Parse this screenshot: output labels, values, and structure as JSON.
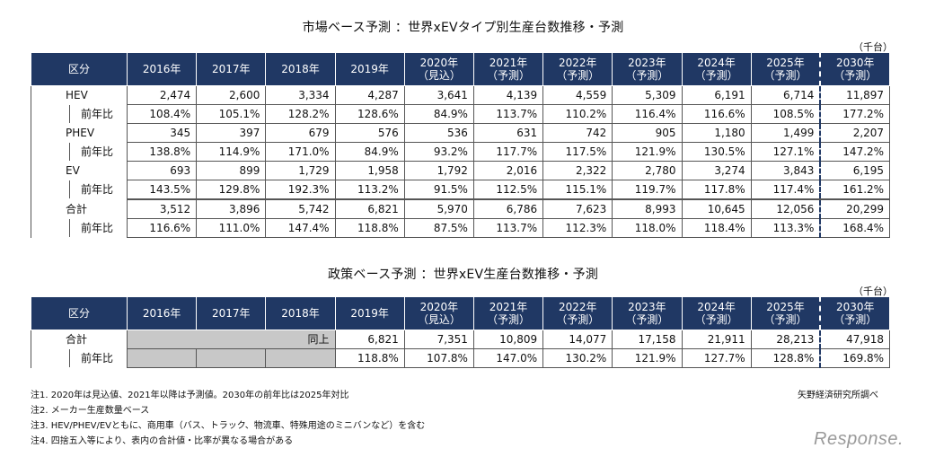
{
  "table1": {
    "title": "市場ベース予測 ：世界xEVタイプ別生産台数推移・予測",
    "unit": "（千台）",
    "header": [
      {
        "l1": "区分",
        "l2": ""
      },
      {
        "l1": "2016年",
        "l2": ""
      },
      {
        "l1": "2017年",
        "l2": ""
      },
      {
        "l1": "2018年",
        "l2": ""
      },
      {
        "l1": "2019年",
        "l2": ""
      },
      {
        "l1": "2020年",
        "l2": "（見込）"
      },
      {
        "l1": "2021年",
        "l2": "（予測）"
      },
      {
        "l1": "2022年",
        "l2": "（予測）"
      },
      {
        "l1": "2023年",
        "l2": "（予測）"
      },
      {
        "l1": "2024年",
        "l2": "（予測）"
      },
      {
        "l1": "2025年",
        "l2": "（予測）"
      },
      {
        "l1": "2030年",
        "l2": "（予測）"
      }
    ],
    "rows": [
      {
        "label": "HEV",
        "values": [
          "2,474",
          "2,600",
          "3,334",
          "4,287",
          "3,641",
          "4,139",
          "4,559",
          "5,309",
          "6,191",
          "6,714",
          "11,897"
        ],
        "sub_label": "前年比",
        "sub_values": [
          "108.4%",
          "105.1%",
          "128.2%",
          "128.6%",
          "84.9%",
          "113.7%",
          "110.2%",
          "116.4%",
          "116.6%",
          "108.5%",
          "177.2%"
        ]
      },
      {
        "label": "PHEV",
        "values": [
          "345",
          "397",
          "679",
          "576",
          "536",
          "631",
          "742",
          "905",
          "1,180",
          "1,499",
          "2,207"
        ],
        "sub_label": "前年比",
        "sub_values": [
          "138.8%",
          "114.9%",
          "171.0%",
          "84.9%",
          "93.2%",
          "117.7%",
          "117.5%",
          "121.9%",
          "130.5%",
          "127.1%",
          "147.2%"
        ]
      },
      {
        "label": "EV",
        "values": [
          "693",
          "899",
          "1,729",
          "1,958",
          "1,792",
          "2,016",
          "2,322",
          "2,780",
          "3,274",
          "3,843",
          "6,195"
        ],
        "sub_label": "前年比",
        "sub_values": [
          "143.5%",
          "129.8%",
          "192.3%",
          "113.2%",
          "91.5%",
          "112.5%",
          "115.1%",
          "119.7%",
          "117.8%",
          "117.4%",
          "161.2%"
        ]
      },
      {
        "label": "合計",
        "values": [
          "3,512",
          "3,896",
          "5,742",
          "6,821",
          "5,970",
          "6,786",
          "7,623",
          "8,993",
          "10,645",
          "12,056",
          "20,299"
        ],
        "sub_label": "前年比",
        "sub_values": [
          "116.6%",
          "111.0%",
          "147.4%",
          "118.8%",
          "87.5%",
          "113.7%",
          "112.3%",
          "118.0%",
          "118.4%",
          "113.3%",
          "168.4%"
        ]
      }
    ]
  },
  "table2": {
    "title": "政策ベース予測 ：世界xEV生産台数推移・予測",
    "unit": "（千台）",
    "header": [
      {
        "l1": "区分",
        "l2": ""
      },
      {
        "l1": "2016年",
        "l2": ""
      },
      {
        "l1": "2017年",
        "l2": ""
      },
      {
        "l1": "2018年",
        "l2": ""
      },
      {
        "l1": "2019年",
        "l2": ""
      },
      {
        "l1": "2020年",
        "l2": "（見込）"
      },
      {
        "l1": "2021年",
        "l2": "（予測）"
      },
      {
        "l1": "2022年",
        "l2": "（予測）"
      },
      {
        "l1": "2023年",
        "l2": "（予測）"
      },
      {
        "l1": "2024年",
        "l2": "（予測）"
      },
      {
        "l1": "2025年",
        "l2": "（予測）"
      },
      {
        "l1": "2030年",
        "l2": "（予測）"
      }
    ],
    "row": {
      "label": "合計",
      "same_as_above": "同上",
      "values": [
        "6,821",
        "7,351",
        "10,809",
        "14,077",
        "17,158",
        "21,911",
        "28,213",
        "47,918"
      ],
      "sub_label": "前年比",
      "sub_values": [
        "118.8%",
        "107.8%",
        "147.0%",
        "130.2%",
        "121.9%",
        "127.7%",
        "128.8%",
        "169.8%"
      ]
    }
  },
  "notes": [
    "注1. 2020年は見込値、2021年以降は予測値。2030年の前年比は2025年対比",
    "注2. メーカー生産数量ベース",
    "注3. HEV/PHEV/EVともに、商用車（バス、トラック、物流車、特殊用途のミニバンなど）を含む",
    "注4. 四捨五入等により、表内の合計値・比率が異なる場合がある"
  ],
  "source": "矢野経済研究所調べ",
  "logo": "Response."
}
